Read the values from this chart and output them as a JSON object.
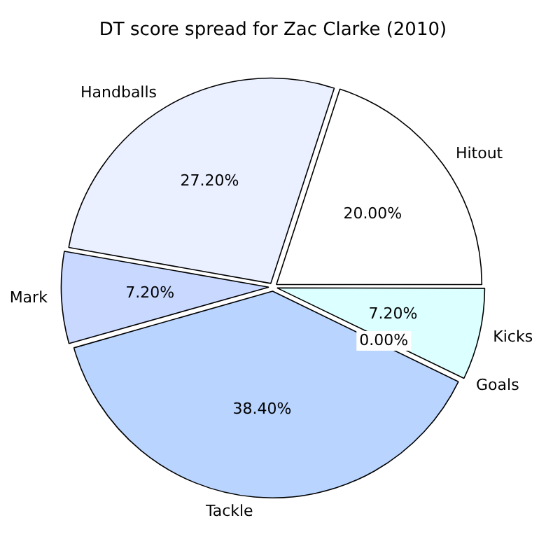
{
  "chart_data": {
    "type": "pie",
    "title": "DT score spread for Zac Clarke (2010)",
    "categories": [
      "Hitout",
      "Handballs",
      "Mark",
      "Tackle",
      "Goals",
      "Kicks"
    ],
    "values": [
      20.0,
      27.2,
      7.2,
      38.4,
      0.0,
      7.2
    ],
    "value_labels": [
      "20.00%",
      "27.20%",
      "7.20%",
      "38.40%",
      "0.00%",
      "7.20%"
    ],
    "colors": [
      "#ffffff",
      "#eaf0ff",
      "#c8d8ff",
      "#b8d4ff",
      "#c8e0ff",
      "#dcffff"
    ],
    "legend": false
  }
}
